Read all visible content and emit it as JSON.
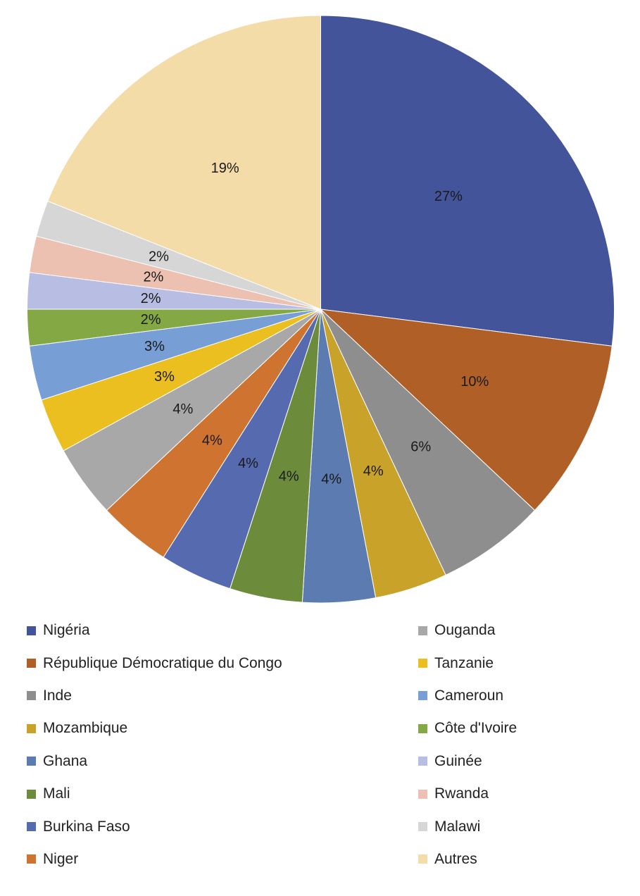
{
  "chart_data": {
    "type": "pie",
    "title": "",
    "legend_position": "bottom",
    "slices": [
      {
        "name": "Nigéria",
        "value": 27,
        "label": "27%",
        "color": "#44549a"
      },
      {
        "name": "République Démocratique du Congo",
        "value": 10,
        "label": "10%",
        "color": "#b06027"
      },
      {
        "name": "Inde",
        "value": 6,
        "label": "6%",
        "color": "#8e8e8e"
      },
      {
        "name": "Mozambique",
        "value": 4,
        "label": "4%",
        "color": "#c9a22a"
      },
      {
        "name": "Ghana",
        "value": 4,
        "label": "4%",
        "color": "#5b7bb1"
      },
      {
        "name": "Mali",
        "value": 4,
        "label": "4%",
        "color": "#6c8c3b"
      },
      {
        "name": "Burkina Faso",
        "value": 4,
        "label": "4%",
        "color": "#556aaf"
      },
      {
        "name": "Niger",
        "value": 4,
        "label": "4%",
        "color": "#cf7330"
      },
      {
        "name": "Ouganda",
        "value": 4,
        "label": "4%",
        "color": "#a8a8a8"
      },
      {
        "name": "Tanzanie",
        "value": 3,
        "label": "3%",
        "color": "#eabf1f"
      },
      {
        "name": "Cameroun",
        "value": 3,
        "label": "3%",
        "color": "#779ed5"
      },
      {
        "name": "Côte d'Ivoire",
        "value": 2,
        "label": "2%",
        "color": "#84a843"
      },
      {
        "name": "Guinée",
        "value": 2,
        "label": "2%",
        "color": "#b7bde3"
      },
      {
        "name": "Rwanda",
        "value": 2,
        "label": "2%",
        "color": "#ecc1b1"
      },
      {
        "name": "Malawi",
        "value": 2,
        "label": "2%",
        "color": "#d6d6d6"
      },
      {
        "name": "Autres",
        "value": 19,
        "label": "19%",
        "color": "#f4dca8"
      }
    ]
  }
}
